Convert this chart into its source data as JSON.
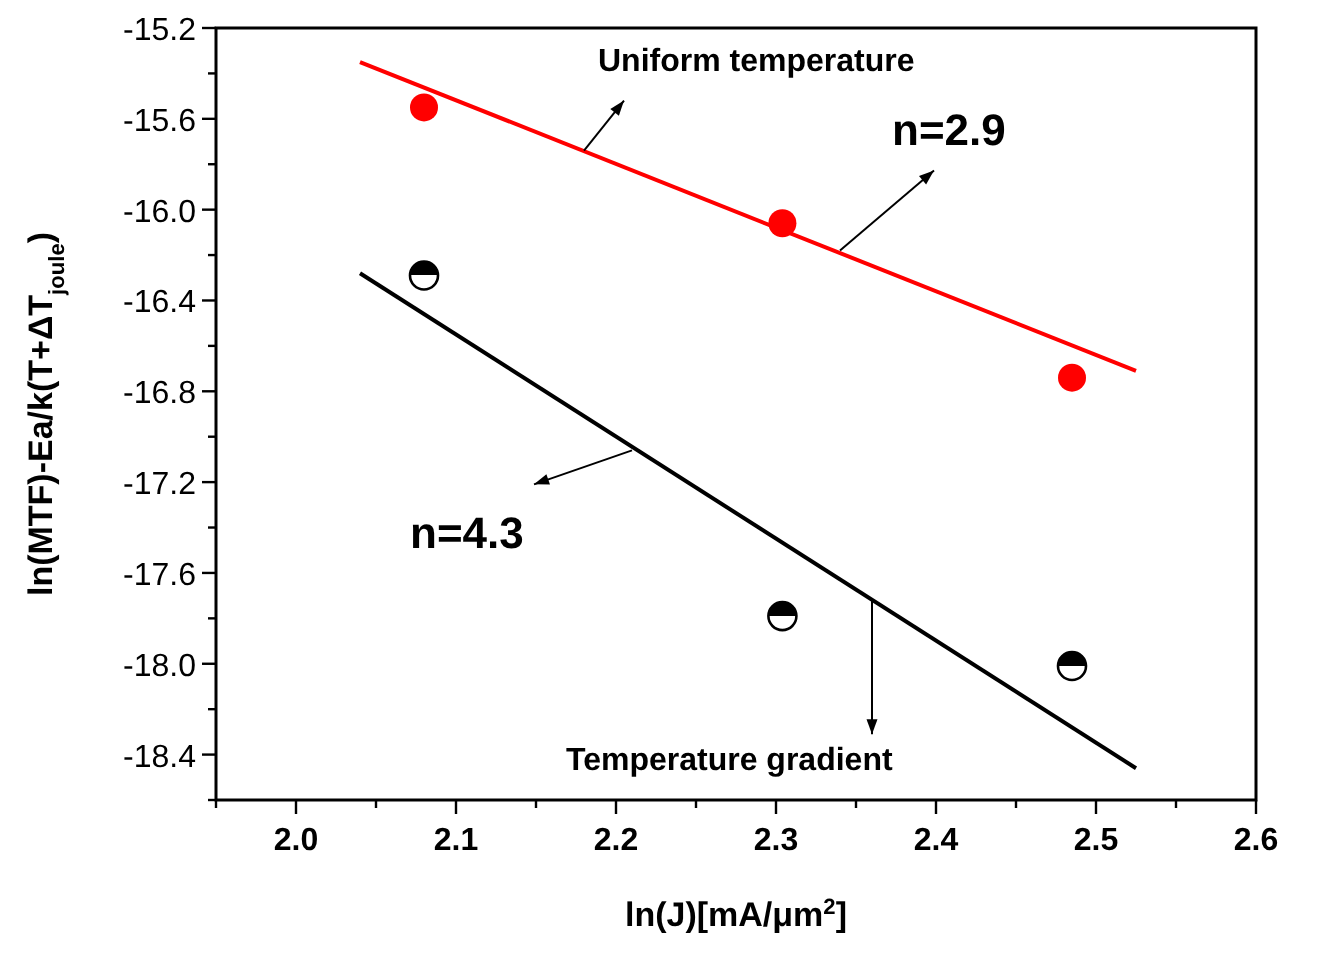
{
  "chart_data": {
    "type": "scatter",
    "xlabel": "ln(J)[mA/μm$^{2}$]",
    "ylabel": "ln(MTF)-Ea/k(T+ΔT$_{joule}$)",
    "xlim": [
      1.95,
      2.6
    ],
    "ylim": [
      -18.6,
      -15.2
    ],
    "xticks": [
      {
        "value": 1.95,
        "label": null
      },
      {
        "value": 2.0,
        "label": "2.0"
      },
      {
        "value": 2.05,
        "label": null
      },
      2.1,
      {
        "value": 2.15,
        "label": null
      },
      2.2,
      {
        "value": 2.25,
        "label": null
      },
      2.3,
      {
        "value": 2.35,
        "label": null
      },
      2.4,
      {
        "value": 2.45,
        "label": null
      },
      2.5,
      {
        "value": 2.55,
        "label": null
      },
      2.6
    ],
    "yticks": [
      -15.2,
      {
        "value": -15.4,
        "label": null
      },
      -15.6,
      {
        "value": -15.8,
        "label": null
      },
      {
        "value": -16.0,
        "label": "-16.0"
      },
      {
        "value": -16.2,
        "label": null
      },
      -16.4,
      {
        "value": -16.6,
        "label": null
      },
      -16.8,
      {
        "value": -17.0,
        "label": null
      },
      -17.2,
      {
        "value": -17.4,
        "label": null
      },
      -17.6,
      {
        "value": -17.8,
        "label": null
      },
      {
        "value": -18.0,
        "label": "-18.0"
      },
      {
        "value": -18.2,
        "label": null
      },
      -18.4,
      {
        "value": -18.6,
        "label": null
      }
    ],
    "grid": false,
    "series": [
      {
        "color": "#ff0000",
        "marker": "circle",
        "x": [
          2.08,
          2.304,
          2.485
        ],
        "values": [
          -15.55,
          -16.06,
          -16.74
        ]
      },
      {
        "color": "#000000",
        "marker": "circle",
        "x": [
          2.08,
          2.304,
          2.485
        ],
        "values": [
          -16.29,
          -17.79,
          -18.01
        ]
      },
      {
        "type": "line",
        "color": "#ff0000",
        "x": [
          2.04,
          2.525
        ],
        "values": [
          -15.35,
          -16.71
        ]
      },
      {
        "type": "line",
        "color": "#000000",
        "x": [
          2.04,
          2.525
        ],
        "values": [
          -16.28,
          -18.46
        ]
      }
    ],
    "annotations": [
      {
        "text": "Uniform temperature",
        "x": 2.18,
        "y": -15.74
      },
      {
        "text": "n=2.9",
        "x": 2.34,
        "y": -16.18
      },
      {
        "text": "n=4.3",
        "x": 2.21,
        "y": -17.06
      },
      {
        "text": "Temperature gradient",
        "x": 2.36,
        "y": -17.72
      }
    ]
  }
}
